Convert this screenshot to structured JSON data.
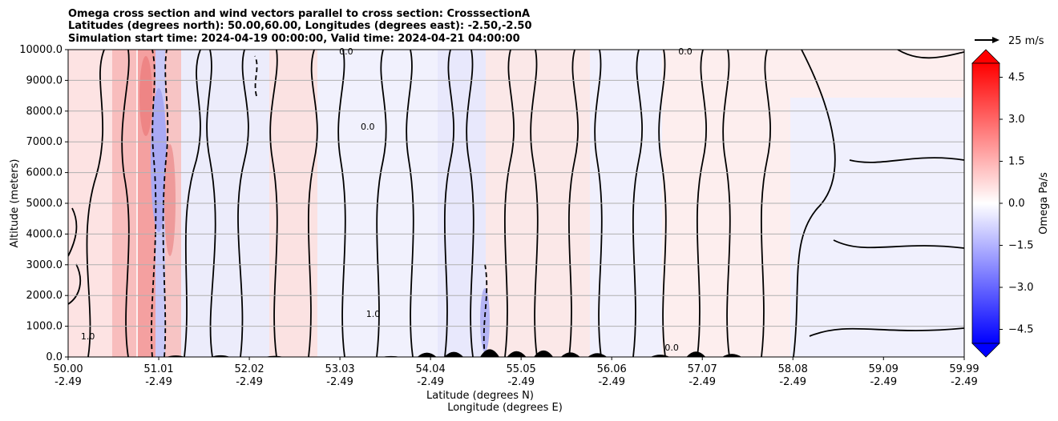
{
  "chart_data": {
    "type": "heatmap",
    "title": [
      "Omega cross section and wind vectors parallel to cross section: CrosssectionA",
      "Latitudes (degrees north): 50.00,60.00, Longitudes (degrees east): -2.50,-2.50",
      "Simulation start time: 2024-04-19 00:00:00, Valid time: 2024-04-21 04:00:00"
    ],
    "xlabel": [
      "Latitude (degrees N)",
      "Longitude (degrees E)"
    ],
    "ylabel": "Altitude (meters)",
    "x_ticks": [
      {
        "lat": "50.00",
        "lon": "-2.49"
      },
      {
        "lat": "51.01",
        "lon": "-2.49"
      },
      {
        "lat": "52.02",
        "lon": "-2.49"
      },
      {
        "lat": "53.03",
        "lon": "-2.49"
      },
      {
        "lat": "54.04",
        "lon": "-2.49"
      },
      {
        "lat": "55.05",
        "lon": "-2.49"
      },
      {
        "lat": "56.06",
        "lon": "-2.49"
      },
      {
        "lat": "57.07",
        "lon": "-2.49"
      },
      {
        "lat": "58.08",
        "lon": "-2.49"
      },
      {
        "lat": "59.09",
        "lon": "-2.49"
      },
      {
        "lat": "59.99",
        "lon": "-2.49"
      }
    ],
    "xlim": [
      50.0,
      59.99
    ],
    "y_ticks": [
      "0.0",
      "1000.0",
      "2000.0",
      "3000.0",
      "4000.0",
      "5000.0",
      "6000.0",
      "7000.0",
      "8000.0",
      "9000.0",
      "10000.0"
    ],
    "ylim": [
      0,
      10000
    ],
    "grid": "horizontal",
    "colorbar": {
      "label": "Omega Pa/s",
      "range": [
        -5.0,
        5.0
      ],
      "ticks": [
        "4.5",
        "3.0",
        "1.5",
        "0.0",
        "−1.5",
        "−3.0",
        "−4.5"
      ],
      "tick_values": [
        4.5,
        3.0,
        1.5,
        0.0,
        -1.5,
        -3.0,
        -4.5
      ],
      "colors": {
        "negative": "#0000ff",
        "neutral": "#ffffff",
        "positive": "#ff0000"
      },
      "extend": "both"
    },
    "vector_key": "25 m/s",
    "contour_labels": [
      {
        "text": "1.0",
        "lat": 50.22,
        "alt": 680
      },
      {
        "text": "1.0",
        "lat": 53.4,
        "alt": 1400
      },
      {
        "text": "0.0",
        "lat": 53.34,
        "alt": 7500
      },
      {
        "text": "0.0",
        "lat": 56.73,
        "alt": 310
      },
      {
        "text": "0.0",
        "lat": 53.1,
        "alt": 9950
      },
      {
        "text": "0.0",
        "lat": 56.88,
        "alt": 9950
      }
    ],
    "terrain": [
      {
        "lat": 51.2,
        "top": 100
      },
      {
        "lat": 51.7,
        "top": 110
      },
      {
        "lat": 52.3,
        "top": 70
      },
      {
        "lat": 53.6,
        "top": 60
      },
      {
        "lat": 54.0,
        "top": 280
      },
      {
        "lat": 54.3,
        "top": 330
      },
      {
        "lat": 54.7,
        "top": 500
      },
      {
        "lat": 55.0,
        "top": 380
      },
      {
        "lat": 55.3,
        "top": 420
      },
      {
        "lat": 55.6,
        "top": 300
      },
      {
        "lat": 55.9,
        "top": 250
      },
      {
        "lat": 56.6,
        "top": 150
      },
      {
        "lat": 57.0,
        "top": 350
      },
      {
        "lat": 57.4,
        "top": 200
      }
    ]
  }
}
